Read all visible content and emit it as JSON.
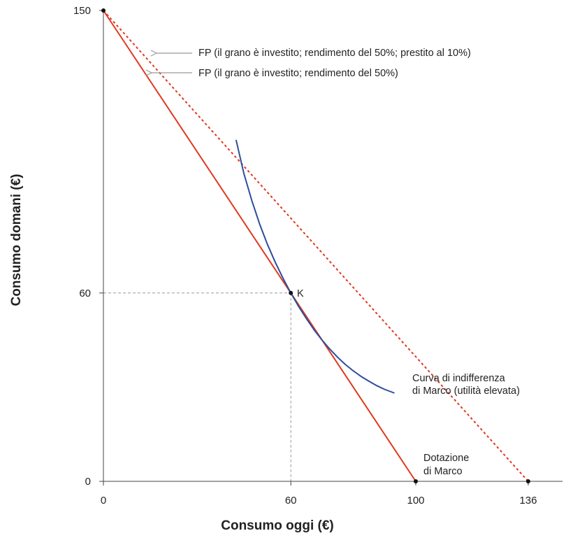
{
  "chart_data": {
    "type": "line",
    "xlabel": "Consumo oggi (€)",
    "ylabel": "Consumo domani (€)",
    "xlim": [
      0,
      147
    ],
    "ylim": [
      0,
      150
    ],
    "x_ticks": [
      {
        "value": 0,
        "label": "0"
      },
      {
        "value": 60,
        "label": "60"
      },
      {
        "value": 100,
        "label": "100"
      },
      {
        "value": 136,
        "label": "136"
      }
    ],
    "y_ticks": [
      {
        "value": 0,
        "label": "0"
      },
      {
        "value": 60,
        "label": "60"
      },
      {
        "value": 150,
        "label": "150"
      }
    ],
    "series": [
      {
        "name": "FP (il grano è investito; rendimento del 50%; prestito al 10%)",
        "style": "dotted",
        "color": "#e0391e",
        "points": [
          [
            0,
            150
          ],
          [
            136,
            0
          ]
        ]
      },
      {
        "name": "FP (il grano è investito; rendimento del 50%)",
        "style": "solid",
        "color": "#e0391e",
        "points": [
          [
            0,
            150
          ],
          [
            100,
            0
          ]
        ]
      },
      {
        "name": "Curva di indifferenza di Marco (utilità elevata)",
        "style": "solid",
        "color": "#2d4d9c",
        "points": [
          [
            42.5,
            108.6
          ],
          [
            45,
            98
          ],
          [
            47.5,
            89.5
          ],
          [
            50,
            82
          ],
          [
            52.5,
            75.5
          ],
          [
            55,
            69.8
          ],
          [
            57.5,
            64.7
          ],
          [
            60,
            60
          ],
          [
            62.5,
            55.7
          ],
          [
            65,
            51.8
          ],
          [
            67.5,
            48.2
          ],
          [
            70,
            45
          ],
          [
            72.5,
            42.1
          ],
          [
            75,
            39.5
          ],
          [
            77.5,
            37.2
          ],
          [
            80,
            35.2
          ],
          [
            82.5,
            33.4
          ],
          [
            85,
            31.9
          ],
          [
            87.5,
            30.5
          ],
          [
            90,
            29.3
          ],
          [
            93,
            28.2
          ]
        ]
      }
    ],
    "guide_lines": {
      "x": 60,
      "y": 60,
      "style": "dashed",
      "color": "#9a9a9a"
    },
    "points": [
      {
        "x": 0,
        "y": 150,
        "label": ""
      },
      {
        "x": 60,
        "y": 60,
        "label": "K"
      },
      {
        "x": 100,
        "y": 0,
        "label": ""
      },
      {
        "x": 136,
        "y": 0,
        "label": ""
      }
    ],
    "annotations": {
      "fp_loan": "FP (il grano è investito; rendimento del 50%; prestito al 10%)",
      "fp": "FP (il grano è investito; rendimento del 50%)",
      "indiff_line1": "Curva di indifferenza",
      "indiff_line2": "di Marco (utilità elevata)",
      "endow_line1": "Dotazione",
      "endow_line2": "di Marco"
    },
    "colors": {
      "fp": "#e0391e",
      "indifference": "#2d4d9c",
      "axis": "#444444",
      "guide": "#9a9a9a",
      "arrow": "#999999"
    }
  }
}
